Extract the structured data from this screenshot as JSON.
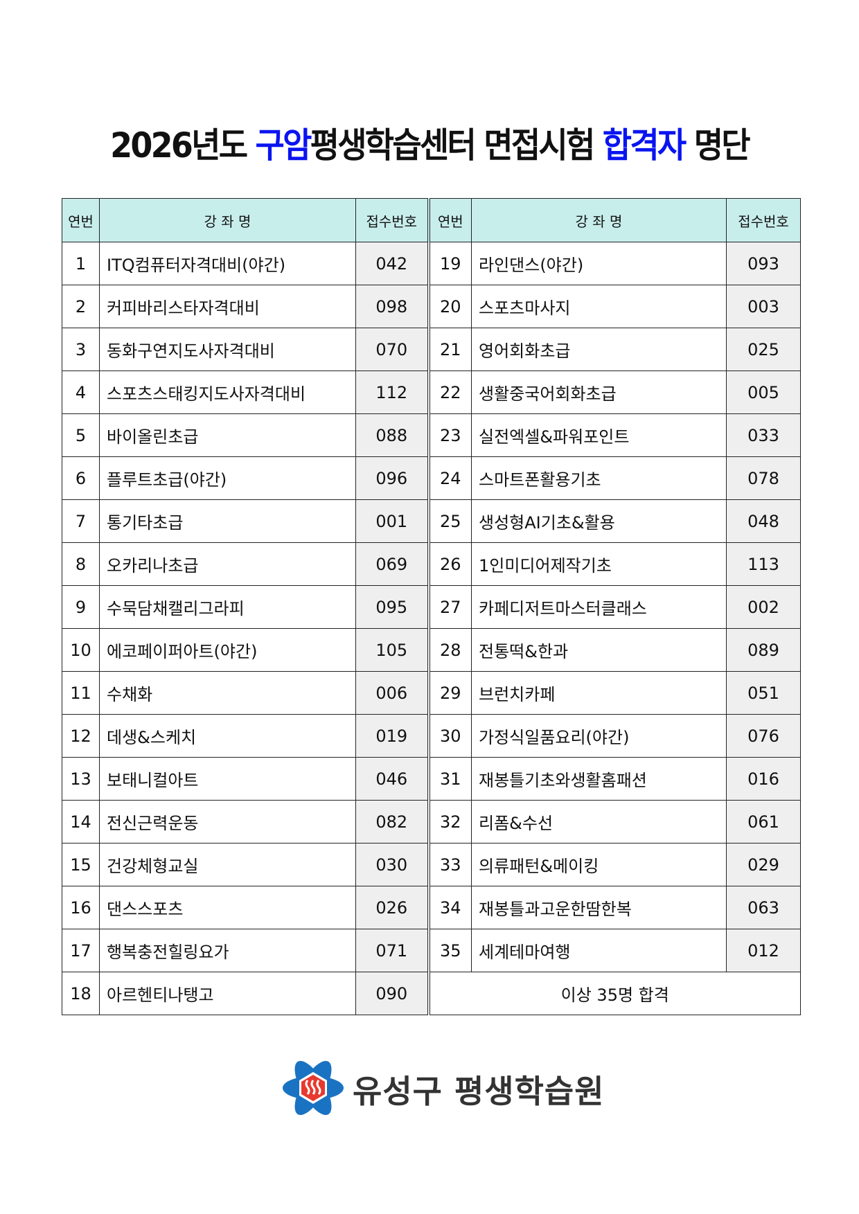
{
  "title": {
    "part1": "2026년도 ",
    "part2": "구암",
    "part3": "평생학습센터 면접시험 ",
    "part4": "합격자",
    "part5": " 명단",
    "accent_color": "#0a14f0"
  },
  "table": {
    "headers": {
      "no": "연번",
      "name": "강 좌 명",
      "code": "접수번호"
    },
    "left": [
      {
        "no": "1",
        "name": "ITQ컴퓨터자격대비(야간)",
        "code": "042"
      },
      {
        "no": "2",
        "name": "커피바리스타자격대비",
        "code": "098"
      },
      {
        "no": "3",
        "name": "동화구연지도사자격대비",
        "code": "070"
      },
      {
        "no": "4",
        "name": "스포츠스태킹지도사자격대비",
        "code": "112"
      },
      {
        "no": "5",
        "name": "바이올린초급",
        "code": "088"
      },
      {
        "no": "6",
        "name": "플루트초급(야간)",
        "code": "096"
      },
      {
        "no": "7",
        "name": "통기타초급",
        "code": "001"
      },
      {
        "no": "8",
        "name": "오카리나초급",
        "code": "069"
      },
      {
        "no": "9",
        "name": "수묵담채캘리그라피",
        "code": "095"
      },
      {
        "no": "10",
        "name": "에코페이퍼아트(야간)",
        "code": "105"
      },
      {
        "no": "11",
        "name": "수채화",
        "code": "006"
      },
      {
        "no": "12",
        "name": "데생&스케치",
        "code": "019"
      },
      {
        "no": "13",
        "name": "보태니컬아트",
        "code": "046"
      },
      {
        "no": "14",
        "name": "전신근력운동",
        "code": "082"
      },
      {
        "no": "15",
        "name": "건강체형교실",
        "code": "030"
      },
      {
        "no": "16",
        "name": "댄스스포츠",
        "code": "026"
      },
      {
        "no": "17",
        "name": "행복충전힐링요가",
        "code": "071"
      },
      {
        "no": "18",
        "name": "아르헨티나탱고",
        "code": "090"
      }
    ],
    "right": [
      {
        "no": "19",
        "name": "라인댄스(야간)",
        "code": "093"
      },
      {
        "no": "20",
        "name": "스포츠마사지",
        "code": "003"
      },
      {
        "no": "21",
        "name": "영어회화초급",
        "code": "025"
      },
      {
        "no": "22",
        "name": "생활중국어회화초급",
        "code": "005"
      },
      {
        "no": "23",
        "name": "실전엑셀&파워포인트",
        "code": "033"
      },
      {
        "no": "24",
        "name": "스마트폰활용기초",
        "code": "078"
      },
      {
        "no": "25",
        "name": "생성형AI기초&활용",
        "code": "048"
      },
      {
        "no": "26",
        "name": "1인미디어제작기초",
        "code": "113"
      },
      {
        "no": "27",
        "name": "카페디저트마스터클래스",
        "code": "002"
      },
      {
        "no": "28",
        "name": "전통떡&한과",
        "code": "089"
      },
      {
        "no": "29",
        "name": "브런치카페",
        "code": "051"
      },
      {
        "no": "30",
        "name": "가정식일품요리(야간)",
        "code": "076"
      },
      {
        "no": "31",
        "name": "재봉틀기초와생활홈패션",
        "code": "016"
      },
      {
        "no": "32",
        "name": "리폼&수선",
        "code": "061"
      },
      {
        "no": "33",
        "name": "의류패턴&메이킹",
        "code": "029"
      },
      {
        "no": "34",
        "name": "재봉틀과고운한땀한복",
        "code": "063"
      },
      {
        "no": "35",
        "name": "세계테마여행",
        "code": "012"
      }
    ],
    "summary": "이상 35명 합격",
    "header_color": "#c8eeec"
  },
  "logo": {
    "text": "유성구 평생학습원"
  }
}
